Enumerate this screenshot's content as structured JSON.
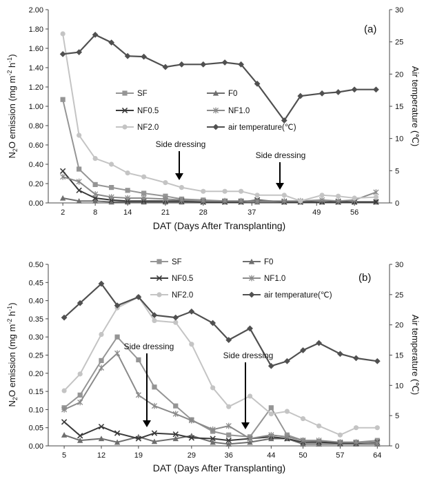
{
  "chart_data": [
    {
      "type": "line",
      "panel_label": "(a)",
      "xlabel": "DAT (Days After Transplanting)",
      "ylabel_left": "N2O emission (mg m-2 h-1)",
      "ylabel_right": "Air temperature (℃)",
      "x_ticks": [
        2,
        8,
        14,
        21,
        28,
        37,
        49,
        56
      ],
      "y_left_ticks": [
        "0.00",
        "0.20",
        "0.40",
        "0.60",
        "0.80",
        "1.00",
        "1.20",
        "1.40",
        "1.60",
        "1.80",
        "2.00"
      ],
      "y_right_ticks": [
        "0",
        "5",
        "10",
        "15",
        "20",
        "25",
        "30"
      ],
      "y_left_lim": [
        0,
        2.0
      ],
      "y_right_lim": [
        0,
        30
      ],
      "x": [
        2,
        5,
        8,
        11,
        14,
        17,
        21,
        24,
        28,
        32,
        35,
        38,
        43,
        46,
        50,
        53,
        56,
        60
      ],
      "series": [
        {
          "name": "SF",
          "values": [
            1.07,
            0.35,
            0.19,
            0.16,
            0.13,
            0.1,
            0.07,
            0.04,
            0.03,
            0.02,
            0.02,
            0.02,
            0.01,
            0.01,
            0.01,
            0.01,
            0.01,
            0.01
          ]
        },
        {
          "name": "F0",
          "values": [
            0.05,
            0.02,
            0.02,
            0.01,
            0.01,
            0.01,
            0.01,
            0.01,
            0.01,
            0.01,
            0.01,
            0.01,
            0.01,
            0.01,
            0.01,
            0.01,
            0.01,
            0.01
          ]
        },
        {
          "name": "NF0.5",
          "values": [
            0.33,
            0.13,
            0.05,
            0.03,
            0.02,
            0.02,
            0.02,
            0.02,
            0.01,
            0.01,
            0.01,
            0.03,
            0.01,
            0.01,
            0.01,
            0.01,
            0.01,
            0.01
          ]
        },
        {
          "name": "NF1.0",
          "values": [
            0.27,
            0.22,
            0.09,
            0.06,
            0.05,
            0.05,
            0.04,
            0.03,
            0.02,
            0.02,
            0.02,
            0.02,
            0.02,
            0.02,
            0.03,
            0.02,
            0.03,
            0.11
          ]
        },
        {
          "name": "NF2.0",
          "values": [
            1.75,
            0.7,
            0.46,
            0.4,
            0.31,
            0.27,
            0.21,
            0.16,
            0.12,
            0.12,
            0.12,
            0.08,
            0.08,
            0.02,
            0.08,
            0.07,
            0.05,
            0.06
          ]
        },
        {
          "name": "air temperature(℃)",
          "axis": "right",
          "values": [
            23.1,
            23.4,
            26.1,
            24.9,
            22.8,
            22.7,
            21.1,
            21.5,
            21.5,
            21.8,
            21.5,
            18.5,
            12.8,
            16.6,
            17.0,
            17.2,
            17.6,
            17.6
          ]
        }
      ],
      "annotations": [
        {
          "text": "Side dressing",
          "x": 19
        },
        {
          "text": "Side dressing",
          "x": 43
        }
      ],
      "legend": "center-left"
    },
    {
      "type": "line",
      "panel_label": "(b)",
      "xlabel": "DAT (Days After Transplanting)",
      "ylabel_left": "N2O emission (mg m-2 h-1)",
      "ylabel_right": "Air temperature (℃)",
      "x_ticks": [
        5,
        12,
        19,
        29,
        36,
        44,
        50,
        57,
        64
      ],
      "y_left_ticks": [
        "0.00",
        "0.05",
        "0.10",
        "0.15",
        "0.20",
        "0.25",
        "0.30",
        "0.35",
        "0.40",
        "0.45",
        "0.50"
      ],
      "y_right_ticks": [
        "0",
        "5",
        "10",
        "15",
        "20",
        "25",
        "30"
      ],
      "y_left_lim": [
        0,
        0.5
      ],
      "y_right_lim": [
        0,
        30
      ],
      "x": [
        5,
        8,
        12,
        15,
        19,
        22,
        26,
        29,
        33,
        36,
        40,
        44,
        47,
        50,
        53,
        57,
        60,
        64
      ],
      "series": [
        {
          "name": "SF",
          "values": [
            0.105,
            0.14,
            0.235,
            0.3,
            0.237,
            0.162,
            0.11,
            0.072,
            0.04,
            0.03,
            0.025,
            0.105,
            0.03,
            0.015,
            0.012,
            0.01,
            0.01,
            0.015
          ]
        },
        {
          "name": "F0",
          "values": [
            0.03,
            0.015,
            0.02,
            0.01,
            0.025,
            0.012,
            0.02,
            0.028,
            0.01,
            0.005,
            0.01,
            0.02,
            0.02,
            0.005,
            0.005,
            0.005,
            0.005,
            0.005
          ]
        },
        {
          "name": "NF0.5",
          "values": [
            0.066,
            0.028,
            0.053,
            0.035,
            0.02,
            0.035,
            0.032,
            0.022,
            0.02,
            0.015,
            0.02,
            0.025,
            0.02,
            0.01,
            0.01,
            0.008,
            0.008,
            0.01
          ]
        },
        {
          "name": "NF1.0",
          "values": [
            0.1,
            0.12,
            0.215,
            0.255,
            0.14,
            0.11,
            0.088,
            0.07,
            0.045,
            0.055,
            0.02,
            0.03,
            0.025,
            0.015,
            0.015,
            0.01,
            0.01,
            0.008
          ]
        },
        {
          "name": "NF2.0",
          "values": [
            0.152,
            0.198,
            0.307,
            0.38,
            0.41,
            0.345,
            0.34,
            0.28,
            0.16,
            0.108,
            0.137,
            0.088,
            0.095,
            0.075,
            0.055,
            0.03,
            0.05,
            0.05
          ]
        },
        {
          "name": "air temperature(℃)",
          "axis": "right",
          "values": [
            21.2,
            23.6,
            26.8,
            23.2,
            24.6,
            21.6,
            21.2,
            22.2,
            20.3,
            17.5,
            19.4,
            13.2,
            14.0,
            15.8,
            17.0,
            15.2,
            14.5,
            14.0
          ]
        }
      ],
      "annotations": [
        {
          "text": "Side dressing",
          "x": 22
        },
        {
          "text": "Side dressing",
          "x": 44
        }
      ],
      "legend": "top"
    }
  ]
}
